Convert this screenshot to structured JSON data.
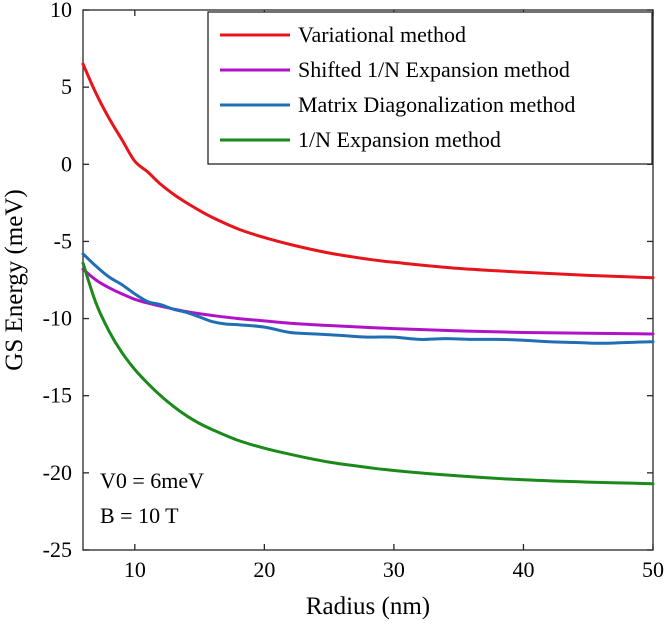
{
  "chart_data": {
    "type": "line",
    "title": "",
    "xlabel": "Radius (nm)",
    "ylabel": "GS Energy (meV)",
    "xlim": [
      6,
      50
    ],
    "ylim": [
      -25,
      10
    ],
    "xticks": [
      10,
      20,
      30,
      40,
      50
    ],
    "yticks": [
      10,
      5,
      0,
      -5,
      -10,
      -15,
      -20,
      -25
    ],
    "grid": false,
    "legend_position": "top-right",
    "annotations": [
      "V0 = 6meV",
      "B = 10 T"
    ],
    "series": [
      {
        "name": "Variational method",
        "color": "#e8141b",
        "x": [
          6,
          7,
          8,
          9,
          10,
          11,
          12,
          13,
          14,
          15,
          16,
          18,
          20,
          22,
          25,
          28,
          30,
          35,
          40,
          45,
          50
        ],
        "y": [
          6.5,
          4.6,
          3.0,
          1.6,
          0.2,
          -0.5,
          -1.3,
          -1.95,
          -2.5,
          -3.0,
          -3.45,
          -4.2,
          -4.75,
          -5.2,
          -5.75,
          -6.15,
          -6.35,
          -6.75,
          -7.0,
          -7.2,
          -7.35
        ]
      },
      {
        "name": "Shifted 1/N Expansion method",
        "color": "#b012c8",
        "x": [
          6,
          7,
          8,
          9,
          10,
          11,
          12,
          14,
          16,
          18,
          20,
          22,
          25,
          30,
          35,
          40,
          45,
          50
        ],
        "y": [
          -6.8,
          -7.5,
          -8.0,
          -8.4,
          -8.75,
          -9.0,
          -9.2,
          -9.55,
          -9.8,
          -10.0,
          -10.15,
          -10.3,
          -10.45,
          -10.65,
          -10.8,
          -10.9,
          -10.95,
          -11.0
        ]
      },
      {
        "name": "Matrix Diagonalization method",
        "color": "#1f6fb5",
        "x": [
          6,
          7,
          8,
          9,
          10,
          11,
          12,
          13,
          14,
          15,
          16,
          17,
          18,
          20,
          22,
          24,
          26,
          28,
          30,
          32,
          34,
          36,
          38,
          40,
          42,
          44,
          46,
          48,
          50
        ],
        "y": [
          -5.8,
          -6.6,
          -7.3,
          -7.8,
          -8.4,
          -8.9,
          -9.1,
          -9.4,
          -9.6,
          -9.9,
          -10.2,
          -10.35,
          -10.4,
          -10.55,
          -10.9,
          -11.0,
          -11.1,
          -11.2,
          -11.2,
          -11.35,
          -11.3,
          -11.35,
          -11.35,
          -11.4,
          -11.5,
          -11.55,
          -11.6,
          -11.55,
          -11.5
        ]
      },
      {
        "name": "1/N Expansion method",
        "color": "#1a8a1a",
        "x": [
          6,
          7,
          8,
          9,
          10,
          11,
          12,
          13,
          14,
          15,
          16,
          18,
          20,
          22,
          25,
          28,
          30,
          35,
          40,
          45,
          50
        ],
        "y": [
          -6.4,
          -9.0,
          -10.8,
          -12.2,
          -13.3,
          -14.2,
          -15.0,
          -15.7,
          -16.3,
          -16.8,
          -17.2,
          -17.9,
          -18.4,
          -18.8,
          -19.3,
          -19.65,
          -19.85,
          -20.2,
          -20.45,
          -20.6,
          -20.7
        ]
      }
    ]
  }
}
